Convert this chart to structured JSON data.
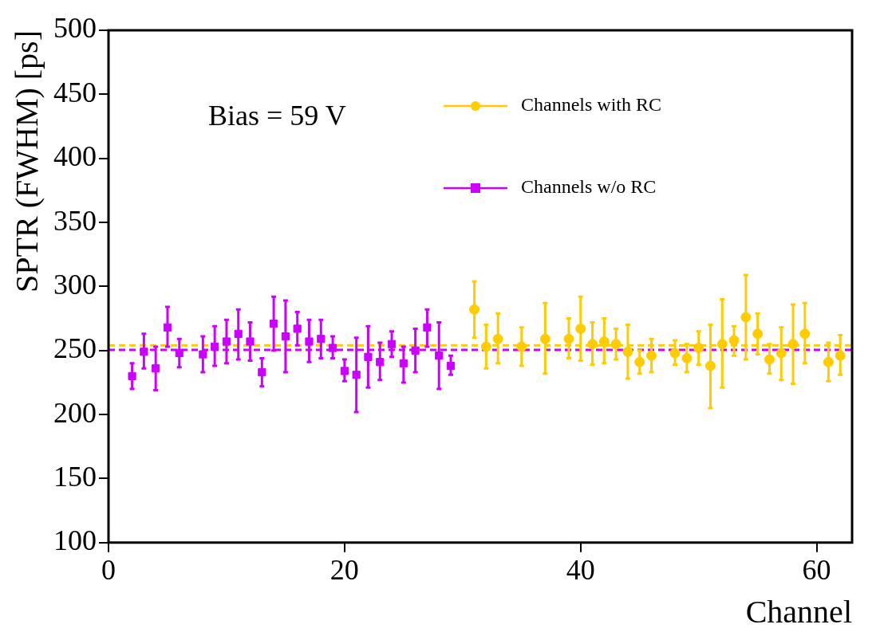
{
  "chart_data": {
    "type": "scatter",
    "xlabel": "Channel",
    "ylabel": "SPTR (FWHM) [ps]",
    "annotations": [
      "Bias = 59 V"
    ],
    "xlim": [
      0,
      63
    ],
    "xticks": [
      0,
      20,
      40,
      60
    ],
    "ylim": [
      100,
      500
    ],
    "yticks": [
      100,
      150,
      200,
      250,
      300,
      350,
      400,
      450,
      500
    ],
    "grid": false,
    "legend": "top right",
    "line_style": "solid",
    "series": [
      {
        "name": "Channels with RC",
        "color": "#ffcc00",
        "marker": "circle",
        "x": [
          31,
          32,
          33,
          35,
          37,
          39,
          40,
          41,
          42,
          43,
          44,
          45,
          46,
          48,
          49,
          50,
          51,
          52,
          53,
          54,
          55,
          56,
          57,
          58,
          59,
          61,
          62
        ],
        "values": [
          282,
          253,
          259,
          253,
          259,
          259,
          267,
          255,
          257,
          255,
          249,
          241,
          246,
          248,
          244,
          252,
          238,
          255,
          258,
          276,
          263,
          243,
          248,
          255,
          263,
          241,
          246
        ],
        "errors": [
          [
            260,
            304
          ],
          [
            236,
            270
          ],
          [
            240,
            279
          ],
          [
            238,
            268
          ],
          [
            232,
            287
          ],
          [
            244,
            275
          ],
          [
            242,
            292
          ],
          [
            239,
            272
          ],
          [
            240,
            275
          ],
          [
            243,
            267
          ],
          [
            228,
            270
          ],
          [
            232,
            250
          ],
          [
            233,
            259
          ],
          [
            239,
            258
          ],
          [
            233,
            255
          ],
          [
            239,
            265
          ],
          [
            205,
            270
          ],
          [
            221,
            290
          ],
          [
            246,
            269
          ],
          [
            243,
            309
          ],
          [
            247,
            279
          ],
          [
            232,
            255
          ],
          [
            227,
            268
          ],
          [
            224,
            286
          ],
          [
            240,
            287
          ],
          [
            226,
            256
          ],
          [
            231,
            262
          ]
        ]
      },
      {
        "name": "Channels w/o RC",
        "color": "#cc00ff",
        "marker": "square",
        "x": [
          2,
          3,
          4,
          5,
          6,
          8,
          9,
          10,
          11,
          12,
          13,
          14,
          15,
          16,
          17,
          18,
          19,
          20,
          21,
          22,
          23,
          24,
          25,
          26,
          27,
          28,
          29
        ],
        "values": [
          230,
          249,
          236,
          268,
          248,
          247,
          253,
          257,
          263,
          257,
          233,
          271,
          261,
          267,
          257,
          259,
          252,
          234,
          231,
          245,
          241,
          255,
          240,
          250,
          268,
          246,
          238
        ],
        "errors": [
          [
            220,
            240
          ],
          [
            236,
            263
          ],
          [
            219,
            253
          ],
          [
            253,
            284
          ],
          [
            237,
            259
          ],
          [
            233,
            261
          ],
          [
            238,
            269
          ],
          [
            240,
            274
          ],
          [
            243,
            282
          ],
          [
            242,
            272
          ],
          [
            222,
            244
          ],
          [
            250,
            292
          ],
          [
            233,
            289
          ],
          [
            254,
            280
          ],
          [
            241,
            274
          ],
          [
            244,
            274
          ],
          [
            244,
            261
          ],
          [
            226,
            243
          ],
          [
            202,
            260
          ],
          [
            221,
            269
          ],
          [
            227,
            256
          ],
          [
            245,
            265
          ],
          [
            225,
            253
          ],
          [
            233,
            267
          ],
          [
            253,
            282
          ],
          [
            220,
            272
          ],
          [
            231,
            246
          ]
        ]
      }
    ],
    "ref_lines": [
      {
        "axis": "y",
        "value": 254,
        "color": "#ffcc00",
        "line_style": "dashed"
      },
      {
        "axis": "y",
        "value": 250.5,
        "color": "#cc00ff",
        "line_style": "dashed"
      }
    ]
  }
}
